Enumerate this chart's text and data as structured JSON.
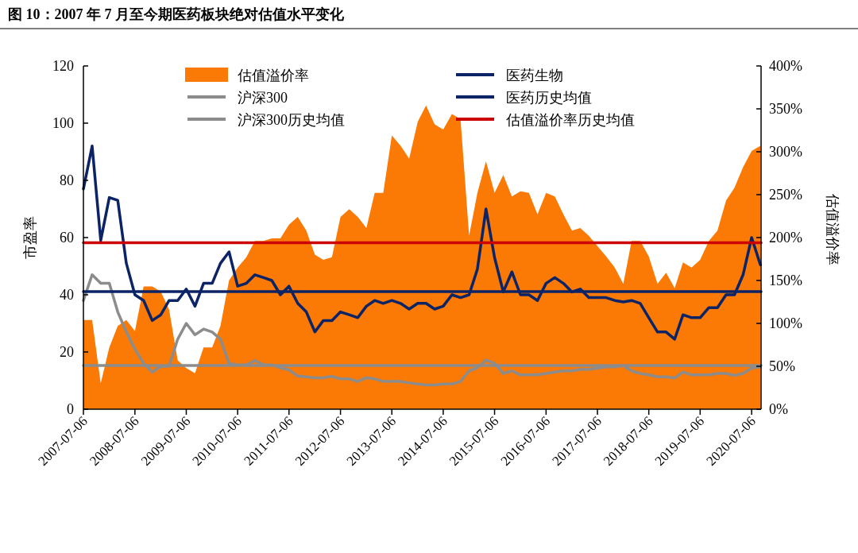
{
  "chart_data": {
    "type": "line",
    "title": "图 10：2007 年 7 月至今期医药板块绝对估值水平变化",
    "ylabel": "市盈率",
    "y2label": "估值溢价率",
    "x": [
      "2007-07-06",
      "2007-09-06",
      "2007-11-06",
      "2008-01-06",
      "2008-03-06",
      "2008-05-06",
      "2008-07-06",
      "2008-09-06",
      "2008-11-06",
      "2009-01-06",
      "2009-03-06",
      "2009-05-06",
      "2009-07-06",
      "2009-09-06",
      "2009-11-06",
      "2010-01-06",
      "2010-03-06",
      "2010-05-06",
      "2010-07-06",
      "2010-09-06",
      "2010-11-06",
      "2011-01-06",
      "2011-03-06",
      "2011-05-06",
      "2011-07-06",
      "2011-09-06",
      "2011-11-06",
      "2012-01-06",
      "2012-03-06",
      "2012-05-06",
      "2012-07-06",
      "2012-09-06",
      "2012-11-06",
      "2013-01-06",
      "2013-03-06",
      "2013-05-06",
      "2013-07-06",
      "2013-09-06",
      "2013-11-06",
      "2014-01-06",
      "2014-03-06",
      "2014-05-06",
      "2014-07-06",
      "2014-09-06",
      "2014-11-06",
      "2015-01-06",
      "2015-03-06",
      "2015-05-06",
      "2015-07-06",
      "2015-09-06",
      "2015-11-06",
      "2016-01-06",
      "2016-03-06",
      "2016-05-06",
      "2016-07-06",
      "2016-09-06",
      "2016-11-06",
      "2017-01-06",
      "2017-03-06",
      "2017-05-06",
      "2017-07-06",
      "2017-09-06",
      "2017-11-06",
      "2018-01-06",
      "2018-03-06",
      "2018-05-06",
      "2018-07-06",
      "2018-09-06",
      "2018-11-06",
      "2019-01-06",
      "2019-03-06",
      "2019-05-06",
      "2019-07-06",
      "2019-09-06",
      "2019-11-06",
      "2020-01-06",
      "2020-03-06",
      "2020-05-06",
      "2020-07-06",
      "2020-09-06"
    ],
    "xlim": [
      "2007-07-06",
      "2020-09-11"
    ],
    "xticks": [
      "2007-07-06",
      "2008-07-06",
      "2009-07-06",
      "2010-07-06",
      "2011-07-06",
      "2012-07-06",
      "2013-07-06",
      "2014-07-06",
      "2015-07-06",
      "2016-07-06",
      "2017-07-06",
      "2018-07-06",
      "2019-07-06",
      "2020-07-06"
    ],
    "ylim": [
      0,
      120
    ],
    "yticks": [
      0,
      20,
      40,
      60,
      80,
      100,
      120
    ],
    "y2lim": [
      0,
      400
    ],
    "y2ticks": [
      {
        "value": 0,
        "label": "0%"
      },
      {
        "value": 50,
        "label": "50%"
      },
      {
        "value": 100,
        "label": "100%"
      },
      {
        "value": 150,
        "label": "150%"
      },
      {
        "value": 200,
        "label": "200%"
      },
      {
        "value": 250,
        "label": "250%"
      },
      {
        "value": 300,
        "label": "300%"
      },
      {
        "value": 350,
        "label": "350%"
      },
      {
        "value": 400,
        "label": "400%"
      }
    ],
    "legend": "top",
    "grid": false,
    "series": [
      {
        "name": "估值溢价率",
        "type": "area",
        "axis": "y2",
        "color": "#fa7a05",
        "values": [
          104,
          104,
          30,
          72,
          97,
          104,
          91,
          143,
          143,
          137,
          116,
          57,
          48,
          42,
          72,
          72,
          97,
          150,
          165,
          177,
          196,
          196,
          199,
          199,
          215,
          224,
          208,
          180,
          174,
          177,
          224,
          233,
          224,
          211,
          252,
          252,
          319,
          307,
          292,
          335,
          354,
          332,
          326,
          344,
          338,
          202,
          252,
          289,
          252,
          273,
          248,
          254,
          252,
          227,
          252,
          248,
          227,
          208,
          211,
          202,
          190,
          178,
          165,
          146,
          196,
          196,
          178,
          146,
          159,
          141,
          171,
          165,
          174,
          196,
          208,
          243,
          258,
          282,
          301,
          307
        ]
      },
      {
        "name": "沪深300",
        "color": "#8c8c8c",
        "line_style": "solid",
        "values": [
          38,
          47,
          44,
          44,
          34,
          27,
          21,
          16,
          13,
          15,
          15,
          24.5,
          30,
          26,
          28,
          27,
          24.5,
          16,
          15.5,
          15.5,
          17,
          15.5,
          15.5,
          14.5,
          13.7,
          11.6,
          11.3,
          11,
          11,
          11.5,
          10.6,
          10.6,
          9.7,
          11,
          10.6,
          9.7,
          9.7,
          9.7,
          9.2,
          8.8,
          8.5,
          8.5,
          8.8,
          8.8,
          9.7,
          13.4,
          14.5,
          17.2,
          16,
          12.5,
          13.4,
          12,
          12,
          12,
          12.5,
          13,
          13.4,
          13.4,
          13.9,
          13.9,
          14.4,
          14.8,
          14.8,
          15.3,
          13.4,
          12.5,
          12,
          11.3,
          11.3,
          10.9,
          13,
          12,
          12,
          12,
          12.5,
          12.5,
          11.8,
          12.5,
          14.4,
          14.8
        ]
      },
      {
        "name": "沪深300历史均值",
        "color": "#8c8c8c",
        "line_style": "solid",
        "x": [
          "2007-07-06",
          "2020-09-11"
        ],
        "values": [
          15.3,
          15.3
        ]
      },
      {
        "name": "医药生物",
        "color": "#0c2466",
        "line_style": "solid",
        "values": [
          77,
          92,
          59,
          74,
          73,
          51,
          40,
          38,
          31,
          33,
          38,
          38,
          42,
          36,
          44,
          44,
          51,
          55,
          43,
          44,
          47,
          46,
          45,
          40,
          43,
          37,
          34,
          27,
          31,
          31,
          34,
          33,
          32,
          36,
          38,
          37,
          38,
          37,
          35,
          37,
          37,
          35,
          36,
          40,
          39,
          40,
          49,
          70,
          53,
          41,
          48,
          40,
          40,
          38,
          44,
          46,
          44,
          41,
          42,
          39,
          39,
          39,
          38,
          37.5,
          38,
          37,
          32,
          27,
          27,
          24.5,
          33,
          32,
          32,
          35.5,
          35.5,
          40,
          40,
          47,
          60,
          50.5
        ]
      },
      {
        "name": "医药历史均值",
        "color": "#0c2466",
        "line_style": "solid",
        "x": [
          "2007-07-06",
          "2020-09-11"
        ],
        "values": [
          41.1,
          41.1
        ]
      },
      {
        "name": "估值溢价率历史均值",
        "axis": "y2",
        "color": "#cc0000",
        "line_style": "solid",
        "x": [
          "2007-07-06",
          "2020-09-11"
        ],
        "values": [
          194,
          194
        ]
      }
    ]
  }
}
